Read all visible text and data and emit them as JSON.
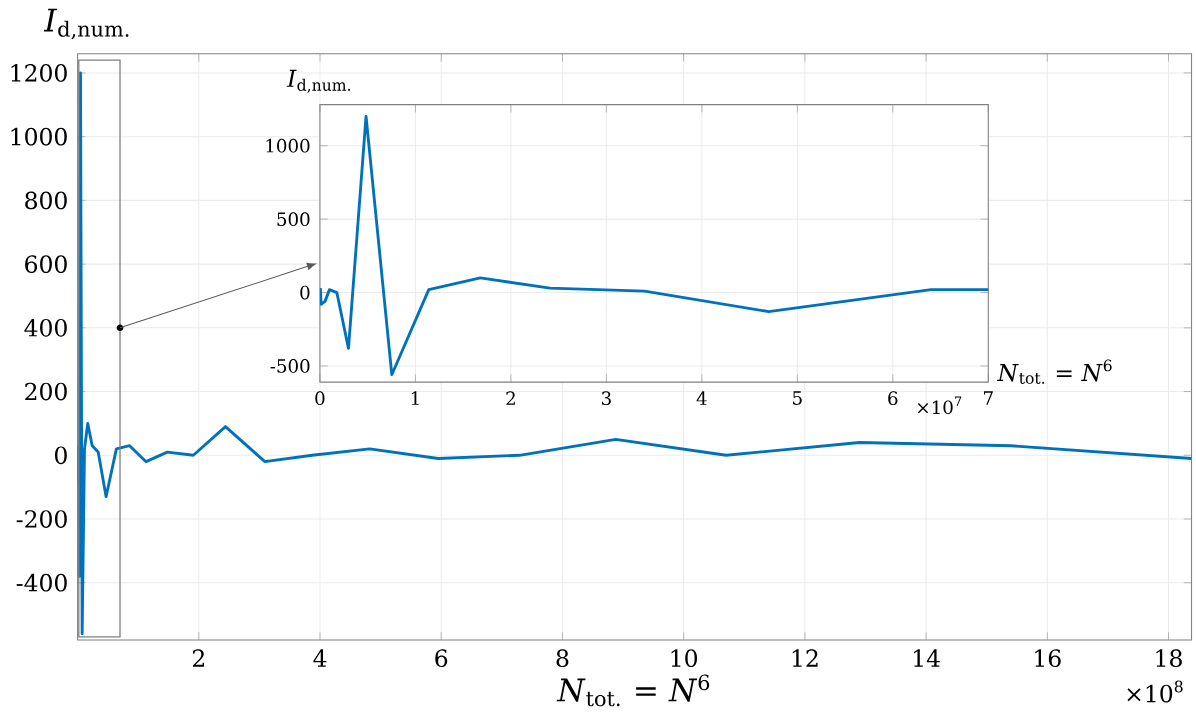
{
  "chart_data": [
    {
      "type": "line",
      "ylabel": "*I*$_{d,num.}$",
      "xlabel": "*N*$_{tot.}$ = *N*$^{6}$",
      "annotations": [
        "×10$^{8}$"
      ],
      "color": "#0072bd",
      "grid": true,
      "x": [
        0.00047,
        0.00118,
        0.00531,
        0.01,
        0.0177,
        0.0299,
        0.0483,
        0.0753,
        0.114,
        0.168,
        0.241,
        0.34,
        0.47,
        0.64,
        0.858,
        1.13,
        1.48,
        1.91,
        2.44,
        3.09,
        3.87,
        4.82,
        5.95,
        7.29,
        8.88,
        10.7,
        12.9,
        15.4,
        18.38
      ],
      "values": [
        30,
        -80,
        -60,
        20,
        0,
        -380,
        1200,
        -560,
        20,
        100,
        30,
        10,
        -130,
        20,
        30,
        -20,
        10,
        0,
        90,
        -20,
        0,
        20,
        -10,
        0,
        50,
        0,
        40,
        30,
        -10
      ],
      "xlim": [
        0,
        18.38
      ],
      "ylim": [
        -580,
        1260
      ],
      "xticks": [
        2,
        4,
        6,
        8,
        10,
        12,
        14,
        16,
        18
      ],
      "yticks": [
        -400,
        -200,
        0,
        200,
        400,
        600,
        800,
        1000,
        1200
      ]
    },
    {
      "type": "line",
      "ylabel": "*I*$_{d,num.}$",
      "xlabel": "*N*$_{tot.}$ = *N*$^{6}$",
      "annotations": [
        "×10$^{7}$"
      ],
      "color": "#0072bd",
      "grid": true,
      "x": [
        0.0047,
        0.0118,
        0.0531,
        0.1,
        0.177,
        0.299,
        0.483,
        0.753,
        1.14,
        1.68,
        2.41,
        3.4,
        4.7,
        6.4,
        7
      ],
      "values": [
        30,
        -80,
        -60,
        20,
        0,
        -380,
        1200,
        -560,
        20,
        100,
        30,
        10,
        -130,
        20,
        20
      ],
      "xlim": [
        0,
        7
      ],
      "ylim": [
        -610,
        1280
      ],
      "xticks": [
        0,
        1,
        2,
        3,
        4,
        5,
        6,
        7
      ],
      "yticks": [
        -500,
        0,
        500,
        1000
      ]
    }
  ]
}
